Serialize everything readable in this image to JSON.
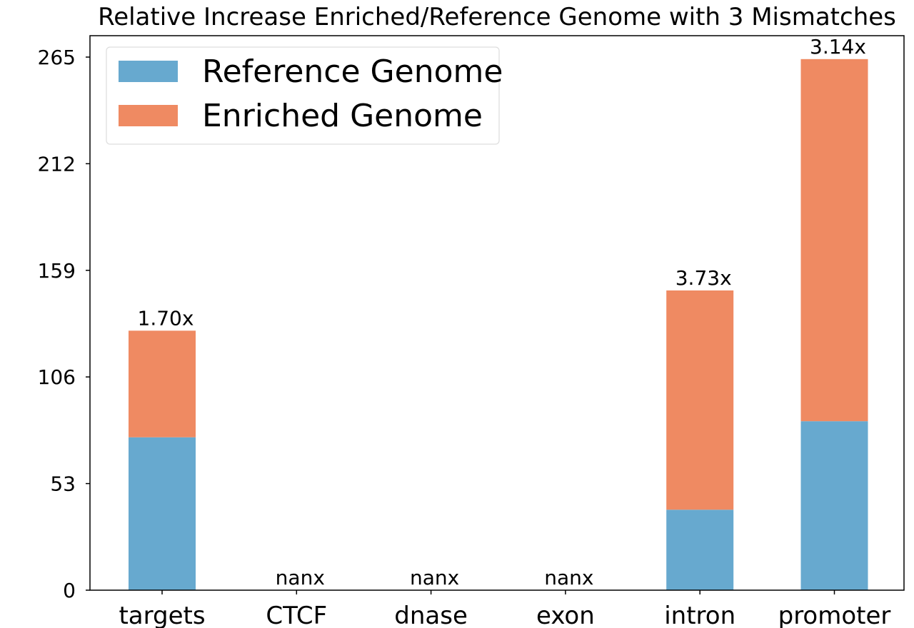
{
  "chart_data": {
    "type": "bar",
    "stacked": true,
    "title": "Relative Increase Enriched/Reference Genome with 3 Mismatches",
    "xlabel": "",
    "ylabel": "",
    "categories": [
      "targets",
      "CTCF",
      "dnase",
      "exon",
      "intron",
      "promoter"
    ],
    "yticks": [
      "0",
      "53",
      "106",
      "159",
      "212",
      "265"
    ],
    "ylim": [
      0,
      265
    ],
    "series": [
      {
        "name": "Reference Genome",
        "color": "#67a9cf",
        "values": [
          76,
          0,
          0,
          0,
          40,
          84
        ]
      },
      {
        "name": "Enriched Genome",
        "color": "#ef8a62",
        "values": [
          53,
          0,
          0,
          0,
          109,
          180
        ]
      }
    ],
    "bar_labels": [
      "1.70x",
      "nanx",
      "nanx",
      "nanx",
      "3.73x",
      "3.14x"
    ],
    "legend_position": "top-left",
    "grid": false
  }
}
